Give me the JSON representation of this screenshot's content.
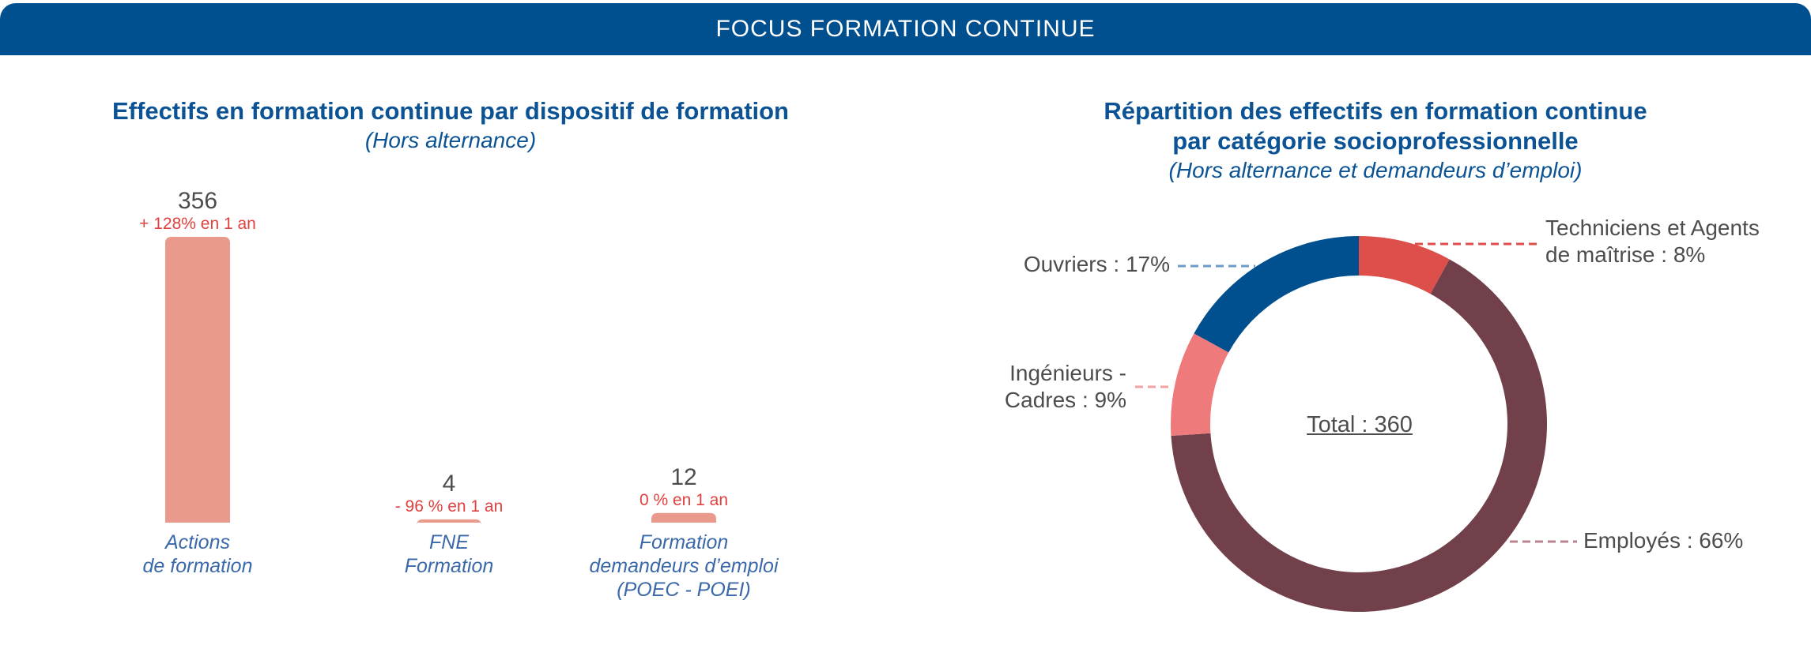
{
  "header": {
    "title": "FOCUS FORMATION CONTINUE"
  },
  "left_panel": {
    "title": "Effectifs en formation continue par dispositif de formation",
    "subtitle": "(Hors alternance)"
  },
  "right_panel": {
    "title_line1": "Répartition des effectifs en formation continue",
    "title_line2": "par catégorie socioprofessionnelle",
    "subtitle": "(Hors alternance et demandeurs d’emploi)",
    "total_label": "Total : 360"
  },
  "chart_data": [
    {
      "type": "bar",
      "categories": [
        "Actions\nde formation",
        "FNE\nFormation",
        "Formation\ndemandeurs d’emploi\n(POEC - POEI)"
      ],
      "values": [
        356,
        4,
        12
      ],
      "value_labels": [
        "356",
        "4",
        "12"
      ],
      "change_labels": [
        "+ 128% en 1 an",
        "- 96 % en 1 an",
        "0 % en 1 an"
      ],
      "bar_color": "#e99a8c",
      "change_color": "#e0413f",
      "ylim": [
        0,
        356
      ]
    },
    {
      "type": "pie",
      "donut": true,
      "total": 360,
      "slices": [
        {
          "label": "Techniciens et Agents\nde maîtrise : 8%",
          "value": 8,
          "color": "#dd4f4a",
          "leader_color": "#dd4f4a"
        },
        {
          "label": "Employés : 66%",
          "value": 66,
          "color": "#71404a",
          "leader_color": "#b9848f"
        },
        {
          "label": "Ingénieurs -\nCadres : 9%",
          "value": 9,
          "color": "#ef7a7c",
          "leader_color": "#f2a3a4"
        },
        {
          "label": "Ouvriers : 17%",
          "value": 17,
          "color": "#00508f",
          "leader_color": "#6b9cc7"
        }
      ]
    }
  ]
}
